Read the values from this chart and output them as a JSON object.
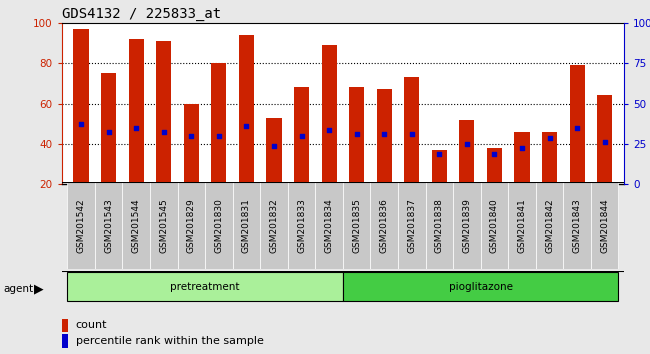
{
  "title": "GDS4132 / 225833_at",
  "samples": [
    "GSM201542",
    "GSM201543",
    "GSM201544",
    "GSM201545",
    "GSM201829",
    "GSM201830",
    "GSM201831",
    "GSM201832",
    "GSM201833",
    "GSM201834",
    "GSM201835",
    "GSM201836",
    "GSM201837",
    "GSM201838",
    "GSM201839",
    "GSM201840",
    "GSM201841",
    "GSM201842",
    "GSM201843",
    "GSM201844"
  ],
  "bar_heights": [
    97,
    75,
    92,
    91,
    60,
    80,
    94,
    53,
    68,
    89,
    68,
    67,
    73,
    37,
    52,
    38,
    46,
    46,
    79,
    64
  ],
  "percentile_ranks": [
    50,
    46,
    48,
    46,
    44,
    44,
    49,
    39,
    44,
    47,
    45,
    45,
    45,
    35,
    40,
    35,
    38,
    43,
    48,
    41
  ],
  "bar_color": "#cc2200",
  "dot_color": "#0000cc",
  "fig_bg_color": "#e8e8e8",
  "plot_bg_color": "#ffffff",
  "xtick_bg_color": "#c8c8c8",
  "ymin": 20,
  "ymax": 100,
  "yticks_left": [
    20,
    40,
    60,
    80,
    100
  ],
  "yticks_right_labels": [
    "0",
    "25",
    "50",
    "75",
    "100%"
  ],
  "yticks_right_vals": [
    20,
    40,
    60,
    80,
    100
  ],
  "groups": [
    {
      "label": "pretreatment",
      "start": 0,
      "end": 10,
      "color": "#aaf09a"
    },
    {
      "label": "pioglitazone",
      "start": 10,
      "end": 20,
      "color": "#44cc44"
    }
  ],
  "agent_label": "agent",
  "legend_count_label": "count",
  "legend_pct_label": "percentile rank within the sample",
  "bar_width": 0.55,
  "title_fontsize": 10,
  "tick_fontsize": 6.5,
  "axis_label_color_left": "#cc2200",
  "axis_label_color_right": "#0000cc"
}
